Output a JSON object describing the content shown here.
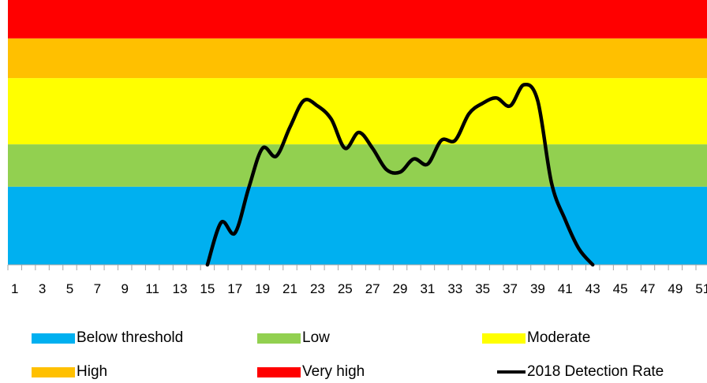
{
  "chart_data": {
    "type": "line",
    "title": "",
    "xlabel": "",
    "ylabel": "",
    "x": [
      15,
      16,
      17,
      18,
      19,
      20,
      21,
      22,
      23,
      24,
      25,
      26,
      27,
      28,
      29,
      30,
      31,
      32,
      33,
      34,
      35,
      36,
      37,
      38,
      39,
      40,
      41,
      42,
      43
    ],
    "x_tick_labels": [
      "1",
      "3",
      "5",
      "7",
      "9",
      "11",
      "13",
      "15",
      "17",
      "19",
      "21",
      "23",
      "25",
      "27",
      "29",
      "31",
      "33",
      "35",
      "37",
      "39",
      "41",
      "43",
      "45",
      "47",
      "49",
      "51"
    ],
    "xlim": [
      1,
      52
    ],
    "ylim": [
      0,
      100
    ],
    "grid": false,
    "legend_position": "bottom",
    "bands": [
      {
        "name": "Below threshold",
        "from": 0,
        "to": 29.5,
        "color": "#00b0f0"
      },
      {
        "name": "Low",
        "from": 29.5,
        "to": 45.5,
        "color": "#92d050"
      },
      {
        "name": "Moderate",
        "from": 45.5,
        "to": 70.5,
        "color": "#ffff00"
      },
      {
        "name": "High",
        "from": 70.5,
        "to": 85.5,
        "color": "#ffc000"
      },
      {
        "name": "Very high",
        "from": 85.5,
        "to": 100,
        "color": "#ff0000"
      }
    ],
    "series": [
      {
        "name": "2018 Detection Rate",
        "color": "#000000",
        "values": [
          0,
          16,
          12,
          29,
          44,
          41,
          52,
          62,
          60,
          55,
          44,
          50,
          44,
          36,
          35,
          40,
          38,
          47,
          47,
          57,
          61,
          63,
          60,
          68,
          62,
          31,
          17,
          6,
          0
        ]
      }
    ]
  },
  "legend": {
    "items": [
      {
        "label": "Below threshold",
        "color": "#00b0f0"
      },
      {
        "label": "Low",
        "color": "#92d050"
      },
      {
        "label": "Moderate",
        "color": "#ffff00"
      },
      {
        "label": "High",
        "color": "#ffc000"
      },
      {
        "label": "Very high",
        "color": "#ff0000"
      },
      {
        "label": "2018 Detection Rate",
        "color": "#000000"
      }
    ]
  }
}
